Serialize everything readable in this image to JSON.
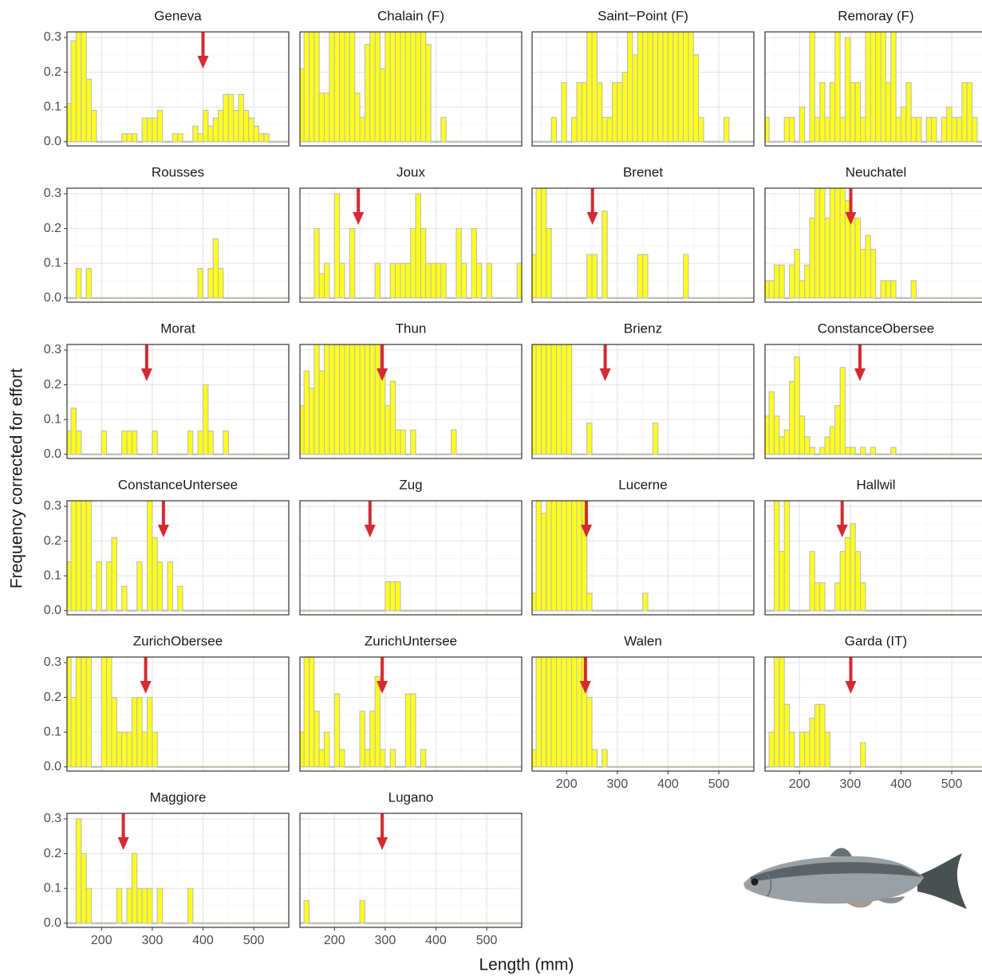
{
  "chart_data": {
    "type": "histogram",
    "xlabel": "Length (mm)",
    "ylabel": "Frequency corrected for effort",
    "xlim": [
      132,
      569
    ],
    "ylim": [
      -0.012,
      0.316
    ],
    "xticks": [
      200,
      300,
      400,
      500
    ],
    "yticks": [
      {
        "value": 0,
        "label": "0.0"
      },
      0.1,
      0.2,
      0.3
    ],
    "grid": true,
    "bar_color": "#ffff1a",
    "bar_edge": "#bdbdbd",
    "arrow_color": "#d42a32",
    "bins": [
      130,
      140,
      150,
      160,
      170,
      180,
      190,
      200,
      210,
      220,
      230,
      240,
      250,
      260,
      270,
      280,
      290,
      300,
      310,
      320,
      330,
      340,
      350,
      360,
      370,
      380,
      390,
      400,
      410,
      420,
      430,
      440,
      450,
      460,
      470,
      480,
      490,
      500,
      510,
      520,
      530,
      540,
      550,
      560,
      570
    ],
    "panels": [
      {
        "title": "Geneva",
        "arrow": 400,
        "values": [
          0.11,
          0.29,
          0.32,
          0.32,
          0.18,
          0.09,
          0,
          0,
          0,
          0,
          0,
          0.023,
          0.023,
          0.023,
          0,
          0.068,
          0.068,
          0.068,
          0.09,
          0,
          0,
          0.023,
          0.023,
          0,
          0,
          0.045,
          0.023,
          0.09,
          0.045,
          0.068,
          0.09,
          0.136,
          0.136,
          0.09,
          0.136,
          0.09,
          0.068,
          0.045,
          0.023,
          0.023,
          0,
          0,
          0,
          0
        ]
      },
      {
        "title": "Chalain (F)",
        "values": [
          0.21,
          0.32,
          0.32,
          0.32,
          0.14,
          0.14,
          0.32,
          0.32,
          0.32,
          0.32,
          0.32,
          0.14,
          0.07,
          0.28,
          0.32,
          0.32,
          0.21,
          0.32,
          0.32,
          0.32,
          0.32,
          0.32,
          0.32,
          0.32,
          0.32,
          0.28,
          0,
          0,
          0.07,
          0,
          0,
          0,
          0,
          0,
          0,
          0,
          0,
          0,
          0,
          0,
          0,
          0,
          0,
          0
        ]
      },
      {
        "title": "Saint−Point (F)",
        "values": [
          0,
          0,
          0,
          0,
          0.07,
          0,
          0.17,
          0,
          0.07,
          0.17,
          0.17,
          0.32,
          0.32,
          0.17,
          0.07,
          0.07,
          0.17,
          0.17,
          0.2,
          0.32,
          0.25,
          0.32,
          0.32,
          0.32,
          0.32,
          0.32,
          0.32,
          0.32,
          0.32,
          0.32,
          0.32,
          0.32,
          0.25,
          0.07,
          0,
          0,
          0,
          0,
          0.07,
          0,
          0,
          0,
          0,
          0
        ]
      },
      {
        "title": "Remoray (F)",
        "values": [
          0.07,
          0,
          0,
          0,
          0.07,
          0.07,
          0,
          0.1,
          0,
          0.32,
          0.07,
          0.17,
          0.07,
          0.17,
          0.32,
          0.07,
          0.3,
          0.17,
          0.17,
          0.07,
          0.32,
          0.32,
          0.32,
          0.32,
          0.17,
          0.32,
          0.07,
          0.1,
          0.17,
          0.07,
          0.07,
          0,
          0.07,
          0.07,
          0,
          0.07,
          0.1,
          0.07,
          0.07,
          0.17,
          0.17,
          0.07,
          0,
          0
        ]
      },
      {
        "title": "Rousses",
        "values": [
          0,
          0,
          0.085,
          0,
          0.085,
          0,
          0,
          0,
          0,
          0,
          0,
          0,
          0,
          0,
          0,
          0,
          0,
          0,
          0,
          0,
          0,
          0,
          0,
          0,
          0,
          0,
          0.085,
          0,
          0.085,
          0.17,
          0.085,
          0,
          0,
          0,
          0,
          0,
          0,
          0,
          0,
          0,
          0,
          0,
          0,
          0
        ]
      },
      {
        "title": "Joux",
        "arrow": 247,
        "values": [
          0,
          0,
          0,
          0.2,
          0.07,
          0.1,
          0,
          0.3,
          0.1,
          0,
          0.2,
          0,
          0,
          0,
          0,
          0.1,
          0,
          0,
          0.1,
          0.1,
          0.1,
          0.1,
          0.2,
          0.3,
          0.2,
          0.1,
          0.1,
          0.1,
          0.1,
          0,
          0,
          0.2,
          0.1,
          0,
          0.2,
          0.1,
          0,
          0.1,
          0,
          0,
          0,
          0,
          0,
          0.1
        ]
      },
      {
        "title": "Brenet",
        "arrow": 251,
        "values": [
          0.125,
          0.32,
          0.32,
          0.2,
          0,
          0,
          0,
          0,
          0,
          0,
          0,
          0.125,
          0.125,
          0,
          0.25,
          0,
          0,
          0,
          0,
          0,
          0,
          0.125,
          0.125,
          0,
          0,
          0,
          0,
          0,
          0,
          0,
          0.125,
          0,
          0,
          0,
          0,
          0,
          0,
          0,
          0,
          0,
          0,
          0,
          0,
          0
        ]
      },
      {
        "title": "Neuchatel",
        "arrow": 301,
        "values": [
          0.05,
          0.05,
          0.095,
          0.095,
          0,
          0.095,
          0.14,
          0.05,
          0.095,
          0.23,
          0.32,
          0.32,
          0.23,
          0.32,
          0.32,
          0.32,
          0.28,
          0.23,
          0.23,
          0.14,
          0.18,
          0.14,
          0,
          0.05,
          0.05,
          0.05,
          0,
          0,
          0,
          0.05,
          0,
          0,
          0,
          0,
          0,
          0,
          0,
          0,
          0,
          0,
          0,
          0,
          0,
          0
        ]
      },
      {
        "title": "Morat",
        "arrow": 289,
        "values": [
          0.067,
          0.133,
          0.067,
          0,
          0,
          0,
          0,
          0.067,
          0,
          0,
          0,
          0.067,
          0.067,
          0.067,
          0,
          0,
          0,
          0.067,
          0,
          0,
          0,
          0,
          0,
          0,
          0.067,
          0,
          0.067,
          0.2,
          0.067,
          0,
          0,
          0.067,
          0,
          0,
          0,
          0,
          0,
          0,
          0,
          0,
          0,
          0,
          0,
          0
        ]
      },
      {
        "title": "Thun",
        "arrow": 294,
        "values": [
          0.14,
          0.24,
          0.19,
          0.32,
          0.24,
          0.32,
          0.32,
          0.32,
          0.32,
          0.32,
          0.32,
          0.32,
          0.32,
          0.32,
          0.32,
          0.32,
          0.24,
          0.14,
          0.21,
          0.07,
          0.07,
          0,
          0.07,
          0,
          0,
          0,
          0,
          0,
          0,
          0,
          0.07,
          0,
          0,
          0,
          0,
          0,
          0,
          0,
          0,
          0,
          0,
          0,
          0,
          0
        ]
      },
      {
        "title": "Brienz",
        "arrow": 276,
        "values": [
          0.32,
          0.32,
          0.32,
          0.32,
          0.32,
          0.32,
          0.32,
          0.32,
          0,
          0,
          0,
          0.09,
          0,
          0,
          0,
          0,
          0,
          0,
          0,
          0,
          0,
          0,
          0,
          0,
          0.09,
          0,
          0,
          0,
          0,
          0,
          0,
          0,
          0,
          0,
          0,
          0,
          0,
          0,
          0,
          0,
          0,
          0,
          0,
          0
        ]
      },
      {
        "title": "ConstanceObersee",
        "arrow": 319,
        "values": [
          0.11,
          0.18,
          0.11,
          0.05,
          0.07,
          0.21,
          0.28,
          0.11,
          0.05,
          0.02,
          0,
          0.02,
          0.05,
          0.08,
          0.14,
          0.25,
          0.02,
          0.02,
          0,
          0.02,
          0,
          0.02,
          0,
          0,
          0,
          0.02,
          0,
          0,
          0,
          0,
          0,
          0,
          0,
          0,
          0,
          0,
          0,
          0,
          0,
          0,
          0,
          0,
          0,
          0
        ]
      },
      {
        "title": "ConstanceUntersee",
        "arrow": 322,
        "values": [
          0.14,
          0.32,
          0.32,
          0.32,
          0.32,
          0,
          0.14,
          0,
          0.14,
          0.21,
          0,
          0.07,
          0,
          0,
          0.14,
          0,
          0.32,
          0.21,
          0.14,
          0,
          0.14,
          0,
          0.07,
          0,
          0,
          0,
          0,
          0,
          0,
          0,
          0,
          0,
          0,
          0,
          0,
          0,
          0,
          0,
          0,
          0,
          0,
          0,
          0,
          0
        ]
      },
      {
        "title": "Zug",
        "arrow": 270,
        "values": [
          0,
          0,
          0,
          0,
          0,
          0,
          0,
          0,
          0,
          0,
          0,
          0,
          0,
          0,
          0,
          0,
          0,
          0.083,
          0.083,
          0.083,
          0,
          0,
          0,
          0,
          0,
          0,
          0,
          0,
          0,
          0,
          0,
          0,
          0,
          0,
          0,
          0,
          0,
          0,
          0,
          0,
          0,
          0,
          0,
          0
        ]
      },
      {
        "title": "Lucerne",
        "arrow": 239,
        "values": [
          0.05,
          0.32,
          0.28,
          0.32,
          0.32,
          0.32,
          0.32,
          0.32,
          0.32,
          0.32,
          0.32,
          0.05,
          0,
          0,
          0,
          0,
          0,
          0,
          0,
          0,
          0,
          0,
          0.05,
          0,
          0,
          0,
          0,
          0,
          0,
          0,
          0,
          0,
          0,
          0,
          0,
          0,
          0,
          0,
          0,
          0,
          0,
          0,
          0,
          0
        ]
      },
      {
        "title": "Hallwil",
        "arrow": 284,
        "values": [
          0,
          0,
          0.32,
          0.17,
          0.32,
          0,
          0,
          0,
          0,
          0.17,
          0.08,
          0.08,
          0,
          0,
          0.08,
          0.17,
          0.21,
          0.25,
          0.17,
          0.08,
          0,
          0,
          0,
          0,
          0,
          0,
          0,
          0,
          0,
          0,
          0,
          0,
          0,
          0,
          0,
          0,
          0,
          0,
          0,
          0,
          0,
          0,
          0,
          0
        ]
      },
      {
        "title": "ZurichObersee",
        "arrow": 287,
        "values": [
          0.32,
          0.2,
          0.32,
          0.32,
          0.32,
          0,
          0,
          0.32,
          0.32,
          0.2,
          0.1,
          0.1,
          0.1,
          0.2,
          0.2,
          0.1,
          0.2,
          0.1,
          0,
          0,
          0,
          0,
          0,
          0,
          0,
          0,
          0,
          0,
          0,
          0,
          0,
          0,
          0,
          0,
          0,
          0,
          0,
          0,
          0,
          0,
          0,
          0,
          0,
          0
        ]
      },
      {
        "title": "ZurichUntersee",
        "arrow": 294,
        "values": [
          0.1,
          0.32,
          0.32,
          0.16,
          0.05,
          0.1,
          0,
          0.21,
          0.05,
          0,
          0,
          0,
          0.16,
          0.05,
          0.16,
          0.26,
          0.05,
          0,
          0.05,
          0,
          0,
          0.21,
          0.21,
          0,
          0.05,
          0,
          0,
          0,
          0,
          0,
          0,
          0,
          0,
          0,
          0,
          0,
          0,
          0,
          0,
          0,
          0,
          0,
          0,
          0
        ]
      },
      {
        "title": "Walen",
        "arrow": 237,
        "values": [
          0.05,
          0.32,
          0.32,
          0.32,
          0.32,
          0.32,
          0.32,
          0.32,
          0.32,
          0.32,
          0.32,
          0.2,
          0.05,
          0,
          0.05,
          0,
          0,
          0,
          0,
          0,
          0,
          0,
          0,
          0,
          0,
          0,
          0,
          0,
          0,
          0,
          0,
          0,
          0,
          0,
          0,
          0,
          0,
          0,
          0,
          0,
          0,
          0,
          0,
          0
        ]
      },
      {
        "title": "Garda (IT)",
        "arrow": 301,
        "values": [
          0,
          0.1,
          0.32,
          0.32,
          0.18,
          0.1,
          0,
          0.1,
          0.1,
          0.14,
          0.18,
          0.18,
          0.1,
          0,
          0,
          0,
          0,
          0,
          0,
          0.07,
          0,
          0,
          0,
          0,
          0,
          0,
          0,
          0,
          0,
          0,
          0,
          0,
          0,
          0,
          0,
          0,
          0,
          0,
          0,
          0,
          0,
          0,
          0,
          0
        ]
      },
      {
        "title": "Maggiore",
        "arrow": 243,
        "values": [
          0,
          0,
          0.3,
          0.2,
          0.1,
          0,
          0,
          0,
          0,
          0,
          0.1,
          0,
          0.1,
          0.2,
          0.1,
          0.1,
          0.1,
          0,
          0.1,
          0,
          0,
          0,
          0,
          0,
          0.1,
          0,
          0,
          0,
          0,
          0,
          0,
          0,
          0,
          0,
          0,
          0,
          0,
          0,
          0,
          0,
          0,
          0,
          0,
          0
        ]
      },
      {
        "title": "Lugano",
        "arrow": 294,
        "values": [
          0,
          0.065,
          0,
          0,
          0,
          0,
          0,
          0,
          0,
          0,
          0,
          0,
          0.065,
          0,
          0,
          0,
          0,
          0,
          0,
          0,
          0,
          0,
          0,
          0,
          0,
          0,
          0,
          0,
          0,
          0,
          0,
          0,
          0,
          0,
          0,
          0,
          0,
          0,
          0,
          0,
          0,
          0,
          0,
          0
        ]
      }
    ]
  }
}
